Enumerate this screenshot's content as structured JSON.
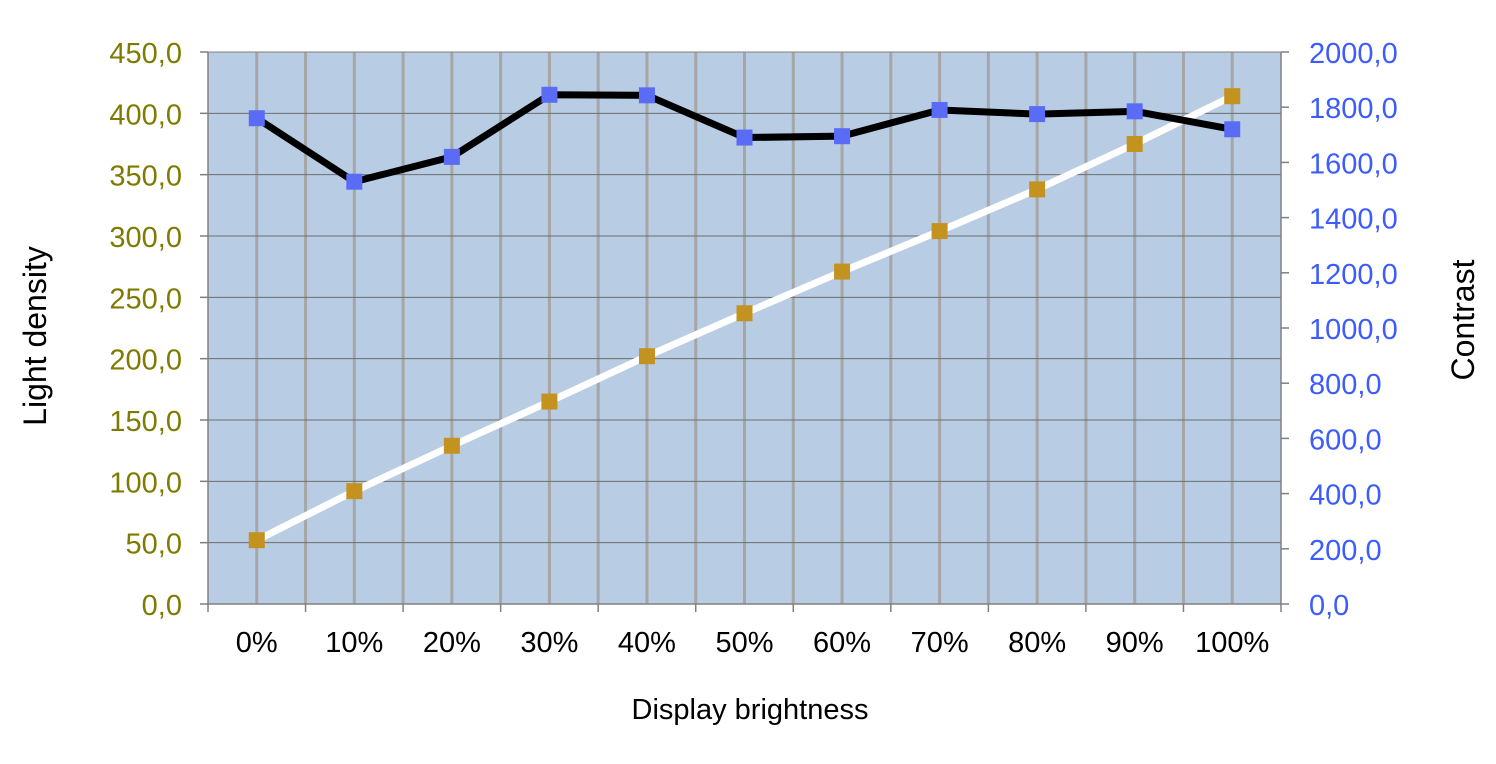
{
  "chart_data": {
    "type": "line",
    "xlabel": "Display brightness",
    "ylabel_left": "Light density",
    "ylabel_right": "Contrast",
    "categories": [
      "0%",
      "10%",
      "20%",
      "30%",
      "40%",
      "50%",
      "60%",
      "70%",
      "80%",
      "90%",
      "100%"
    ],
    "y_left": {
      "lim": [
        0,
        450
      ],
      "ticks": [
        "0,0",
        "50,0",
        "100,0",
        "150,0",
        "200,0",
        "250,0",
        "300,0",
        "350,0",
        "400,0",
        "450,0"
      ],
      "tick_values": [
        0,
        50,
        100,
        150,
        200,
        250,
        300,
        350,
        400,
        450
      ],
      "color": "#7f7a00"
    },
    "y_right": {
      "lim": [
        0,
        2000
      ],
      "ticks": [
        "0,0",
        "200,0",
        "400,0",
        "600,0",
        "800,0",
        "1000,0",
        "1200,0",
        "1400,0",
        "1600,0",
        "1800,0",
        "2000,0"
      ],
      "tick_values": [
        0,
        200,
        400,
        600,
        800,
        1000,
        1200,
        1400,
        1600,
        1800,
        2000
      ],
      "color": "#3d5cff"
    },
    "series": [
      {
        "axis": "left",
        "values": [
          52,
          92,
          129,
          165,
          202,
          237,
          271,
          304,
          338,
          375,
          414
        ],
        "line_color": "#ffffff",
        "marker_color": "#c4921e"
      },
      {
        "axis": "right",
        "values": [
          1760,
          1530,
          1620,
          1845,
          1843,
          1690,
          1695,
          1790,
          1775,
          1785,
          1720
        ],
        "line_color": "#000000",
        "marker_color": "#5a6cf5"
      }
    ],
    "grid": true,
    "plot_background": "#b8cce4",
    "grid_color": "#a6a6a6"
  }
}
